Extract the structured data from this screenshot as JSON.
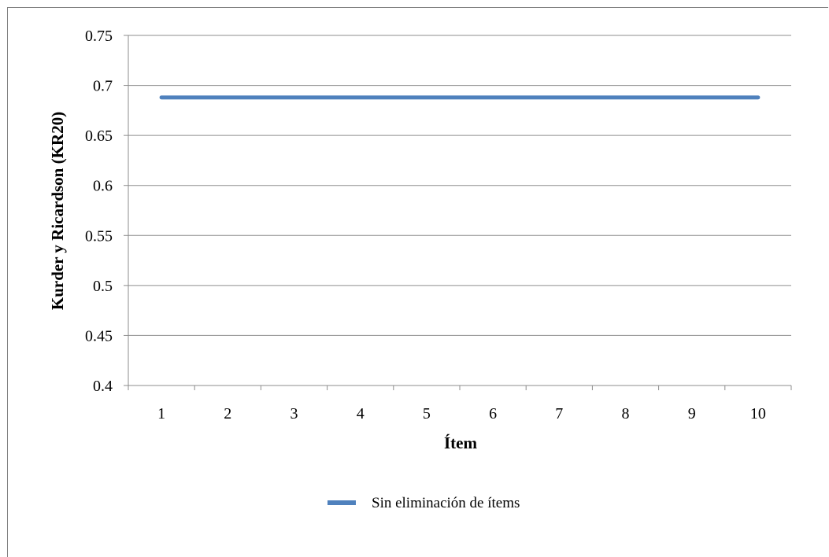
{
  "chart_data": {
    "type": "line",
    "title": "",
    "xlabel": "Ítem",
    "ylabel": "Kurder y Ricardson (KR20)",
    "categories": [
      "1",
      "2",
      "3",
      "4",
      "5",
      "6",
      "7",
      "8",
      "9",
      "10"
    ],
    "yticks": [
      "0.4",
      "0.45",
      "0.5",
      "0.55",
      "0.6",
      "0.65",
      "0.7",
      "0.75"
    ],
    "ylim": [
      0.4,
      0.75
    ],
    "grid": true,
    "legend_position": "bottom",
    "series": [
      {
        "name": "Sin eliminación de ítems",
        "color": "#4f81bd",
        "values": [
          0.688,
          0.688,
          0.688,
          0.688,
          0.688,
          0.688,
          0.688,
          0.688,
          0.688,
          0.688
        ]
      }
    ]
  }
}
